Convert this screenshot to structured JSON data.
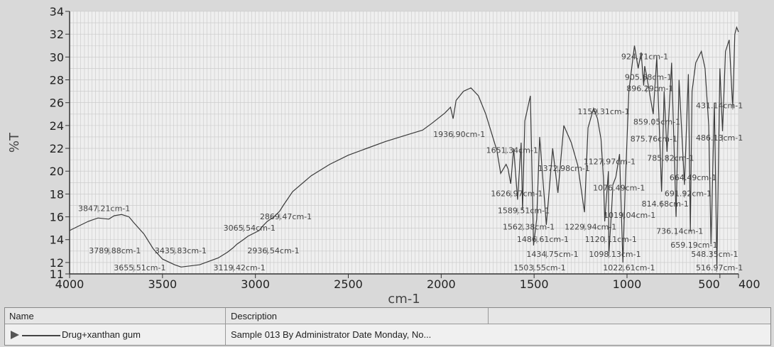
{
  "chart_data": {
    "type": "line",
    "xlabel": "cm-1",
    "ylabel": "%T",
    "xlim": [
      4000,
      400
    ],
    "ylim": [
      11,
      34
    ],
    "x_reversed": true,
    "grid": true,
    "x_ticks": [
      4000,
      3500,
      3000,
      2500,
      2000,
      1500,
      1000,
      500,
      400
    ],
    "y_ticks": [
      11,
      12,
      14,
      16,
      18,
      20,
      22,
      24,
      26,
      28,
      30,
      32,
      34
    ],
    "series": [
      {
        "name": "Drug+xanthan gum",
        "x": [
          4000,
          3950,
          3900,
          3847,
          3789,
          3760,
          3720,
          3680,
          3655,
          3600,
          3550,
          3500,
          3435,
          3400,
          3300,
          3200,
          3150,
          3119,
          3100,
          3065,
          3040,
          2980,
          2960,
          2936,
          2900,
          2869,
          2850,
          2800,
          2700,
          2600,
          2500,
          2400,
          2300,
          2200,
          2100,
          2050,
          1980,
          1950,
          1936,
          1920,
          1880,
          1840,
          1800,
          1760,
          1700,
          1680,
          1651,
          1640,
          1626,
          1610,
          1589,
          1570,
          1562,
          1550,
          1520,
          1503,
          1486,
          1470,
          1434,
          1400,
          1372,
          1340,
          1300,
          1265,
          1229,
          1210,
          1180,
          1159,
          1140,
          1127,
          1120,
          1100,
          1098,
          1080,
          1076,
          1060,
          1040,
          1022,
          1010,
          990,
          960,
          940,
          924,
          910,
          905,
          896,
          880,
          875,
          859,
          840,
          814,
          800,
          785,
          760,
          736,
          720,
          691,
          670,
          659,
          650,
          630,
          600,
          580,
          560,
          548,
          530,
          516,
          500,
          486,
          470,
          450,
          431,
          420,
          410,
          400
        ],
        "y": [
          14.8,
          15.2,
          15.6,
          15.9,
          15.8,
          16.1,
          16.2,
          16.0,
          15.5,
          14.5,
          13.2,
          12.3,
          11.8,
          11.6,
          11.8,
          12.4,
          12.9,
          13.3,
          13.6,
          14.0,
          14.3,
          14.8,
          15.2,
          15.6,
          16.0,
          16.5,
          17.0,
          18.2,
          19.6,
          20.6,
          21.4,
          22.0,
          22.6,
          23.1,
          23.6,
          24.2,
          25.1,
          25.6,
          24.6,
          26.2,
          27.0,
          27.3,
          26.6,
          25.0,
          21.8,
          19.8,
          20.6,
          20.2,
          18.9,
          22.0,
          17.5,
          22.5,
          16.6,
          24.4,
          26.6,
          13.5,
          15.8,
          23.0,
          15.3,
          22.0,
          18.1,
          24.0,
          22.5,
          20.5,
          16.4,
          23.8,
          25.5,
          24.6,
          22.8,
          19.4,
          15.6,
          20.0,
          12.6,
          17.5,
          18.8,
          19.5,
          21.5,
          12.0,
          18.5,
          27.0,
          31.0,
          29.0,
          30.4,
          27.5,
          29.2,
          28.5,
          27.0,
          26.5,
          25.0,
          30.0,
          18.2,
          27.0,
          21.7,
          29.5,
          16.0,
          28.0,
          18.8,
          28.5,
          14.7,
          27.0,
          29.5,
          30.5,
          29.0,
          24.0,
          13.6,
          26.0,
          11.7,
          29.0,
          23.5,
          30.5,
          31.5,
          25.5,
          32.0,
          32.6,
          32.2
        ]
      }
    ],
    "peak_labels": [
      {
        "text": "3847.21cm-1",
        "x": 3847,
        "y": 16.5
      },
      {
        "text": "3789.88cm-1",
        "x": 3789,
        "y": 12.8
      },
      {
        "text": "3655.51cm-1",
        "x": 3655,
        "y": 11.3
      },
      {
        "text": "3435.83cm-1",
        "x": 3435,
        "y": 12.8
      },
      {
        "text": "3119.42cm-1",
        "x": 3119,
        "y": 11.3
      },
      {
        "text": "3065.54cm-1",
        "x": 3065,
        "y": 14.8
      },
      {
        "text": "2936.54cm-1",
        "x": 2936,
        "y": 12.8
      },
      {
        "text": "2869.47cm-1",
        "x": 2869,
        "y": 15.8
      },
      {
        "text": "1936.90cm-1",
        "x": 1936,
        "y": 23.0
      },
      {
        "text": "1651.34cm-1",
        "x": 1651,
        "y": 21.6
      },
      {
        "text": "1626.97cm-1",
        "x": 1626,
        "y": 17.8
      },
      {
        "text": "1589.51cm-1",
        "x": 1589,
        "y": 16.3
      },
      {
        "text": "1562.38cm-1",
        "x": 1562,
        "y": 14.9
      },
      {
        "text": "1486.61cm-1",
        "x": 1486,
        "y": 13.8
      },
      {
        "text": "1434.75cm-1",
        "x": 1434,
        "y": 12.5
      },
      {
        "text": "1503.55cm-1",
        "x": 1503,
        "y": 11.3
      },
      {
        "text": "1372.98cm-1",
        "x": 1372,
        "y": 20.0
      },
      {
        "text": "1229.94cm-1",
        "x": 1229,
        "y": 14.9
      },
      {
        "text": "1159.31cm-1",
        "x": 1159,
        "y": 25.0
      },
      {
        "text": "1127.97cm-1",
        "x": 1127,
        "y": 20.6
      },
      {
        "text": "1120.11cm-1",
        "x": 1120,
        "y": 13.8
      },
      {
        "text": "1098.13cm-1",
        "x": 1098,
        "y": 12.5
      },
      {
        "text": "1076.49cm-1",
        "x": 1076,
        "y": 18.3
      },
      {
        "text": "1019.04cm-1",
        "x": 1019,
        "y": 15.9
      },
      {
        "text": "1022.61cm-1",
        "x": 1022,
        "y": 11.3
      },
      {
        "text": "924.71cm-1",
        "x": 924,
        "y": 29.8
      },
      {
        "text": "905.68cm-1",
        "x": 905,
        "y": 28.0
      },
      {
        "text": "896.29cm-1",
        "x": 896,
        "y": 27.0
      },
      {
        "text": "859.05cm-1",
        "x": 859,
        "y": 24.1
      },
      {
        "text": "875.76cm-1",
        "x": 875,
        "y": 22.6
      },
      {
        "text": "785.82cm-1",
        "x": 785,
        "y": 20.9
      },
      {
        "text": "814.68cm-1",
        "x": 814,
        "y": 16.9
      },
      {
        "text": "691.92cm-1",
        "x": 691,
        "y": 17.8
      },
      {
        "text": "736.14cm-1",
        "x": 736,
        "y": 14.5
      },
      {
        "text": "659.19cm-1",
        "x": 659,
        "y": 13.3
      },
      {
        "text": "664.49cm-1",
        "x": 664,
        "y": 19.2
      },
      {
        "text": "548.35cm-1",
        "x": 548,
        "y": 12.5
      },
      {
        "text": "516.97cm-1",
        "x": 516,
        "y": 11.3
      },
      {
        "text": "486.13cm-1",
        "x": 486,
        "y": 22.7
      },
      {
        "text": "431.14cm-1",
        "x": 431,
        "y": 25.5
      }
    ]
  },
  "legend": {
    "header_name": "Name",
    "header_description": "Description",
    "row_name": "Drug+xanthan gum",
    "row_description": "Sample 013 By Administrator Date Monday, No..."
  },
  "colors": {
    "line": "#3a3a3a",
    "grid": "#c8c8c8",
    "plot_bg": "#efefef",
    "label": "#444444"
  }
}
